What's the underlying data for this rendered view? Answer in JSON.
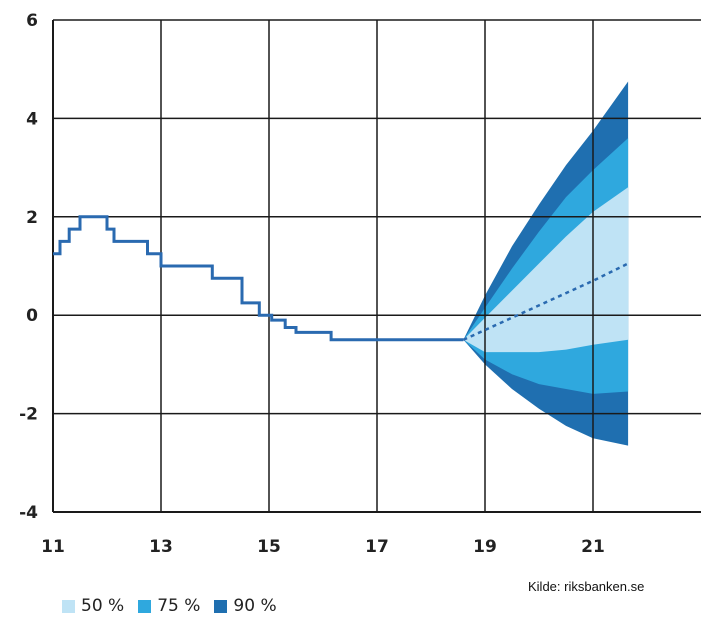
{
  "chart_data": {
    "type": "area",
    "xlim": [
      11,
      23
    ],
    "ylim": [
      -4,
      6
    ],
    "x_ticks": [
      "11",
      "13",
      "15",
      "17",
      "19",
      "21"
    ],
    "y_ticks": [
      "6",
      "4",
      "2",
      "0",
      "-2",
      "-4"
    ],
    "grid": true,
    "legend_placement": "bottom-left",
    "history": {
      "type": "step",
      "x": [
        11.0,
        11.13,
        11.3,
        11.5,
        11.7,
        12.0,
        12.13,
        12.5,
        12.75,
        13.0,
        13.5,
        13.95,
        14.5,
        14.82,
        15.05,
        15.3,
        15.5,
        16.15,
        16.5,
        17.0,
        18.0,
        18.6
      ],
      "y": [
        1.25,
        1.5,
        1.75,
        2.0,
        2.0,
        1.75,
        1.5,
        1.5,
        1.25,
        1.0,
        1.0,
        0.75,
        0.25,
        0.0,
        -0.1,
        -0.25,
        -0.35,
        -0.5,
        -0.5,
        -0.5,
        -0.5,
        -0.5
      ]
    },
    "forecast": {
      "x": [
        18.6,
        19.0,
        19.5,
        20.0,
        20.5,
        21.0,
        21.65
      ],
      "median": [
        -0.5,
        -0.3,
        -0.05,
        0.2,
        0.45,
        0.7,
        1.05
      ],
      "bands": [
        {
          "name": "90 %",
          "upper": [
            -0.5,
            0.4,
            1.4,
            2.25,
            3.05,
            3.75,
            4.75
          ],
          "lower": [
            -0.5,
            -1.0,
            -1.5,
            -1.9,
            -2.25,
            -2.5,
            -2.65
          ]
        },
        {
          "name": "75 %",
          "upper": [
            -0.5,
            0.15,
            0.95,
            1.7,
            2.4,
            2.95,
            3.6
          ],
          "lower": [
            -0.5,
            -0.9,
            -1.2,
            -1.4,
            -1.5,
            -1.6,
            -1.55
          ]
        },
        {
          "name": "50 %",
          "upper": [
            -0.5,
            -0.05,
            0.5,
            1.05,
            1.6,
            2.1,
            2.6
          ],
          "lower": [
            -0.5,
            -0.75,
            -0.75,
            -0.75,
            -0.7,
            -0.6,
            -0.5
          ]
        }
      ]
    },
    "colors": {
      "b90": "#1f6fb0",
      "b75": "#2fa8de",
      "b50": "#bfe3f5",
      "history": "#2a6ab0",
      "median": "#2a6ab0",
      "grid": "#1a1a1a"
    },
    "legend": [
      {
        "label": "50 %",
        "color": "#bfe3f5"
      },
      {
        "label": "75 %",
        "color": "#2fa8de"
      },
      {
        "label": "90 %",
        "color": "#1f6fb0"
      }
    ],
    "source": "Kilde: riksbanken.se"
  }
}
